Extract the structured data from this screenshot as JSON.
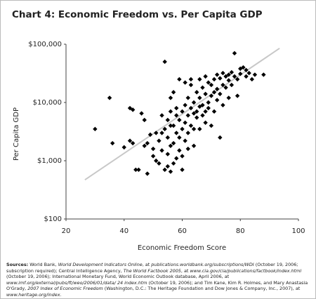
{
  "chart_data": {
    "type": "scatter",
    "title": "Chart 4: Economic Freedom vs. Per Capita GDP",
    "x_label": "Economic Freedom Score",
    "y_label": "Per Capita GDP",
    "x": [
      30,
      36,
      35,
      40,
      42,
      43,
      42,
      44,
      43,
      45,
      46,
      47,
      48,
      48,
      47,
      49,
      50,
      50,
      51,
      51,
      52,
      52,
      53,
      53,
      54,
      54,
      54,
      55,
      55,
      55,
      55,
      56,
      56,
      56,
      56,
      57,
      57,
      57,
      57,
      58,
      58,
      58,
      58,
      59,
      59,
      59,
      59,
      60,
      60,
      60,
      60,
      61,
      61,
      61,
      61,
      62,
      62,
      62,
      62,
      63,
      63,
      63,
      63,
      64,
      64,
      64,
      64,
      65,
      65,
      65,
      66,
      66,
      66,
      66,
      67,
      67,
      67,
      68,
      68,
      68,
      69,
      69,
      69,
      70,
      70,
      70,
      71,
      71,
      71,
      72,
      72,
      72,
      73,
      73,
      73,
      74,
      74,
      74,
      75,
      75,
      76,
      76,
      76,
      77,
      77,
      78,
      78,
      79,
      80,
      80,
      81,
      82,
      82,
      83,
      84,
      85,
      88,
      79,
      68,
      53,
      56
    ],
    "values": [
      3500,
      2000,
      12000,
      1700,
      8000,
      7500,
      2200,
      700,
      2000,
      700,
      6500,
      5000,
      2000,
      600,
      1800,
      2800,
      1600,
      1200,
      1000,
      3000,
      900,
      2200,
      6000,
      1500,
      50000,
      700,
      3500,
      800,
      5000,
      2500,
      1300,
      12000,
      7000,
      1800,
      650,
      900,
      4000,
      2000,
      15000,
      1100,
      3000,
      6000,
      8000,
      1500,
      25000,
      5000,
      2500,
      7000,
      3500,
      1200,
      700,
      9000,
      4500,
      2200,
      22000,
      6000,
      3000,
      12000,
      1600,
      8000,
      20000,
      4000,
      25000,
      10000,
      3500,
      6500,
      1800,
      15000,
      7000,
      5500,
      25000,
      12000,
      8500,
      3500,
      9000,
      18000,
      6000,
      14000,
      4500,
      28000,
      10000,
      22000,
      8000,
      20000,
      13000,
      4000,
      25000,
      15000,
      7000,
      17000,
      30000,
      11000,
      26000,
      14000,
      2500,
      20000,
      32000,
      9000,
      28000,
      18000,
      30000,
      24000,
      12000,
      33000,
      20000,
      70000,
      28000,
      25000,
      38000,
      31000,
      40000,
      36000,
      28000,
      32000,
      25000,
      30000,
      30000,
      13000,
      7000,
      3000,
      4000
    ],
    "color": "#000000",
    "marker": "diamond",
    "trend_line": {
      "x": [
        26.5,
        93.5
      ],
      "y": [
        470,
        85000
      ],
      "color": "#c8c8c8"
    },
    "log_y": true,
    "xlim": [
      20,
      100
    ],
    "xticks": [
      20,
      40,
      60,
      80,
      100
    ],
    "ylim": [
      100,
      100000
    ],
    "yticks": [
      {
        "value": 100,
        "label": "$100"
      },
      {
        "value": 1000,
        "label": "$1,000"
      },
      {
        "value": 10000,
        "label": "$10,000"
      },
      {
        "value": 100000,
        "label": "$100,000"
      }
    ],
    "sources": {
      "label": "Sources:",
      "parts": [
        "World Bank, ",
        "World Development Indicators Online",
        ", at ",
        "publications.worldbank.org/subscriptions/WDI",
        " (October 19, 2006; subscription required); Central Intelligence Agency, ",
        "The World Factbook 2005",
        ", at ",
        "www.cia.gov/cia/publications/factbook/index.html",
        " (October 19, 2006); International Monetary Fund, World Economic Outlook database, April 2006, at ",
        "www.imf.org/external/pubs/ft/weo/2006/01/data/ 24 index.htm",
        " (October 19, 2006); and Tim Kane, Kim R. Holmes, and Mary Anastasia O'Grady, ",
        "2007 Index of Economic Freedom",
        " (Washington, D.C.: The Heritage Foundation and Dow Jones & Company, Inc., 2007), at ",
        "www.heritage.org/index",
        "."
      ]
    }
  }
}
